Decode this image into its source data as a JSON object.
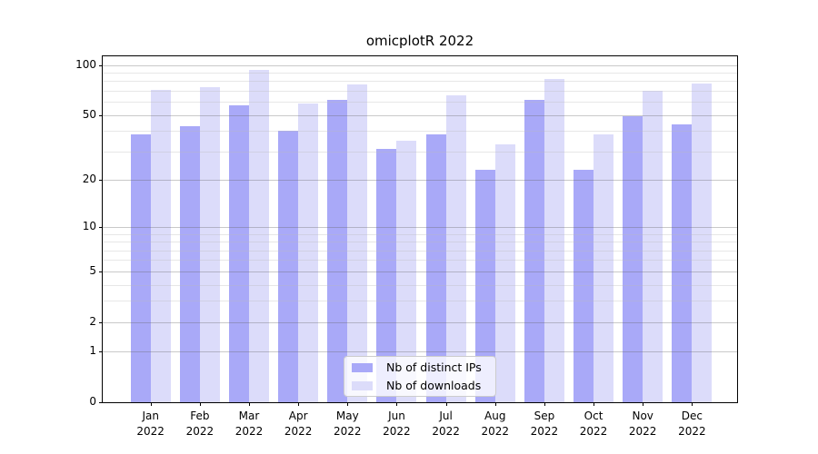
{
  "chart_data": {
    "type": "bar",
    "title": "omicplotR 2022",
    "categories": [
      "Jan",
      "Feb",
      "Mar",
      "Apr",
      "May",
      "Jun",
      "Jul",
      "Aug",
      "Sep",
      "Oct",
      "Nov",
      "Dec"
    ],
    "category_year": "2022",
    "series": [
      {
        "name": "Nb of distinct IPs",
        "color": "#a9a9f8",
        "values": [
          38,
          43,
          57,
          40,
          62,
          31,
          38,
          23,
          62,
          23,
          49,
          44
        ]
      },
      {
        "name": "Nb of downloads",
        "color": "#dcdcfa",
        "values": [
          71,
          74,
          94,
          59,
          77,
          35,
          66,
          33,
          83,
          38,
          70,
          78
        ]
      }
    ],
    "yscale": "log10(y+1)",
    "ylim": [
      0,
      113
    ],
    "y_tick_values": [
      100,
      50,
      20,
      10,
      5,
      2,
      1,
      0
    ],
    "y_minor_gridlines": [
      3,
      4,
      6,
      7,
      8,
      9,
      30,
      40,
      60,
      70,
      80,
      90
    ],
    "grid": "horizontal gridlines drawn above bars",
    "legend_position": "lower center",
    "xlabel": "",
    "ylabel": "",
    "colors": {
      "major_gridline": "rgba(100,100,100,0.35)",
      "minor_gridline": "rgba(185,185,185,0.35)",
      "spine": "#000000",
      "background": "#ffffff"
    }
  }
}
